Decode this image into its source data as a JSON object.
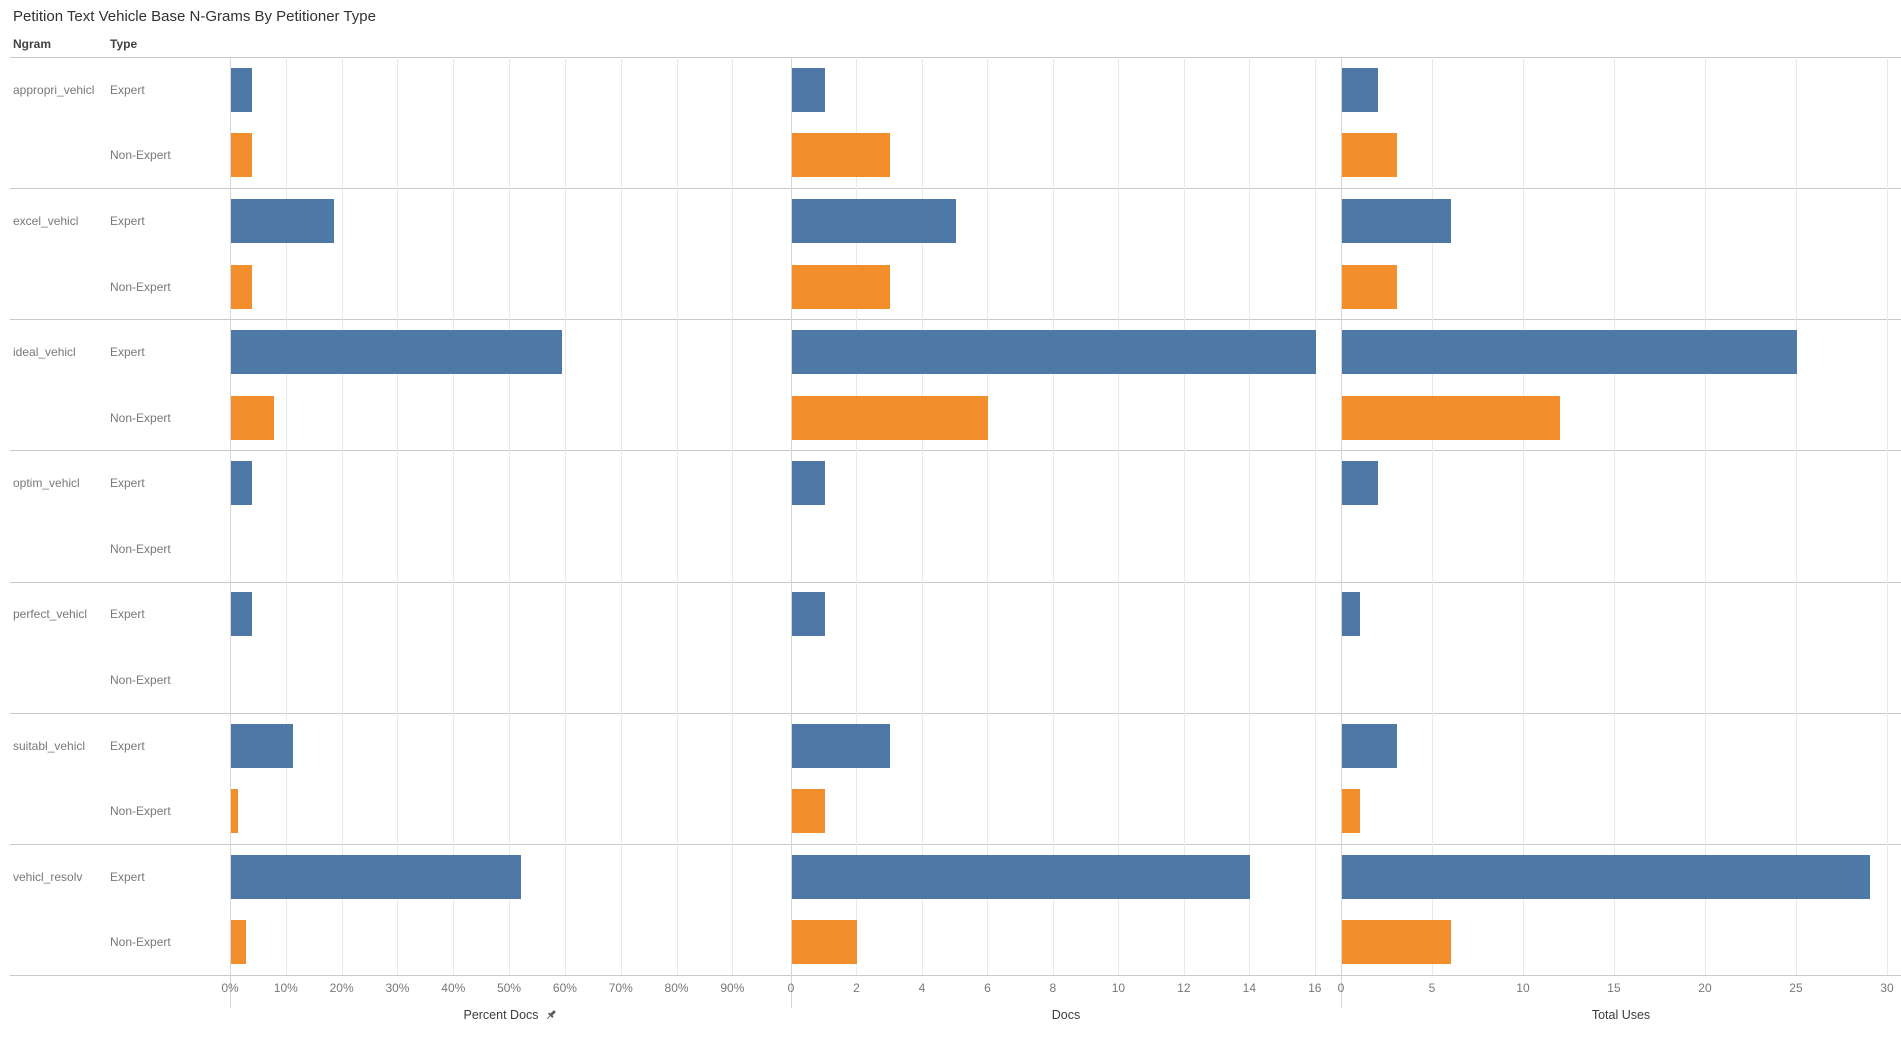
{
  "title": "Petition Text Vehicle Base N-Grams By Petitioner Type",
  "columns": {
    "ngram": "Ngram",
    "type": "Type"
  },
  "chart_data": {
    "type": "bar",
    "orientation": "horizontal",
    "legend": "none",
    "grid": true,
    "types": [
      "Expert",
      "Non-Expert"
    ],
    "colors": {
      "Expert": "#4e79a7",
      "Non-Expert": "#f28e2b"
    },
    "row_groups": [
      "appropri_vehicl",
      "excel_vehicl",
      "ideal_vehicl",
      "optim_vehicl",
      "perfect_vehicl",
      "suitabl_vehicl",
      "vehicl_resolv"
    ],
    "panels": [
      {
        "label": "Percent Docs",
        "pinned": true,
        "field": "percent_docs",
        "axis_max": 100.5,
        "tick_values": [
          0,
          10,
          20,
          30,
          40,
          50,
          60,
          70,
          80,
          90
        ],
        "tick_labels": [
          "0%",
          "10%",
          "20%",
          "30%",
          "40%",
          "50%",
          "60%",
          "70%",
          "80%",
          "90%"
        ]
      },
      {
        "label": "Docs",
        "pinned": false,
        "field": "docs",
        "axis_max": 16.8,
        "tick_values": [
          0,
          2,
          4,
          6,
          8,
          10,
          12,
          14,
          16
        ],
        "tick_labels": [
          "0",
          "2",
          "4",
          "6",
          "8",
          "10",
          "12",
          "14",
          "16"
        ]
      },
      {
        "label": "Total Uses",
        "pinned": false,
        "field": "total_uses",
        "axis_max": 30.77,
        "tick_values": [
          0,
          5,
          10,
          15,
          20,
          25,
          30
        ],
        "tick_labels": [
          "0",
          "5",
          "10",
          "15",
          "20",
          "25",
          "30"
        ]
      }
    ],
    "rows": [
      {
        "ngram": "appropri_vehicl",
        "type": "Expert",
        "percent_docs": 3.7,
        "docs": 1,
        "total_uses": 2
      },
      {
        "ngram": "appropri_vehicl",
        "type": "Non-Expert",
        "percent_docs": 3.8,
        "docs": 3,
        "total_uses": 3
      },
      {
        "ngram": "excel_vehicl",
        "type": "Expert",
        "percent_docs": 18.5,
        "docs": 5,
        "total_uses": 6
      },
      {
        "ngram": "excel_vehicl",
        "type": "Non-Expert",
        "percent_docs": 3.8,
        "docs": 3,
        "total_uses": 3
      },
      {
        "ngram": "ideal_vehicl",
        "type": "Expert",
        "percent_docs": 59.3,
        "docs": 16,
        "total_uses": 25
      },
      {
        "ngram": "ideal_vehicl",
        "type": "Non-Expert",
        "percent_docs": 7.7,
        "docs": 6,
        "total_uses": 12
      },
      {
        "ngram": "optim_vehicl",
        "type": "Expert",
        "percent_docs": 3.7,
        "docs": 1,
        "total_uses": 2
      },
      {
        "ngram": "optim_vehicl",
        "type": "Non-Expert",
        "percent_docs": 0,
        "docs": 0,
        "total_uses": 0
      },
      {
        "ngram": "perfect_vehicl",
        "type": "Expert",
        "percent_docs": 3.7,
        "docs": 1,
        "total_uses": 1
      },
      {
        "ngram": "perfect_vehicl",
        "type": "Non-Expert",
        "percent_docs": 0,
        "docs": 0,
        "total_uses": 0
      },
      {
        "ngram": "suitabl_vehicl",
        "type": "Expert",
        "percent_docs": 11.1,
        "docs": 3,
        "total_uses": 3
      },
      {
        "ngram": "suitabl_vehicl",
        "type": "Non-Expert",
        "percent_docs": 1.3,
        "docs": 1,
        "total_uses": 1
      },
      {
        "ngram": "vehicl_resolv",
        "type": "Expert",
        "percent_docs": 51.9,
        "docs": 14,
        "total_uses": 29
      },
      {
        "ngram": "vehicl_resolv",
        "type": "Non-Expert",
        "percent_docs": 2.6,
        "docs": 2,
        "total_uses": 6
      }
    ]
  }
}
